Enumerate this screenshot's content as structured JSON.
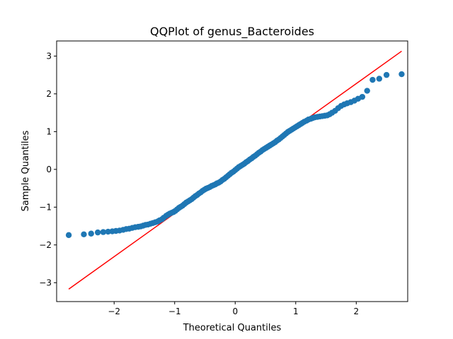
{
  "chart_data": {
    "type": "scatter",
    "title": "QQPlot of genus_Bacteroides",
    "xlabel": "Theoretical Quantiles",
    "ylabel": "Sample Quantiles",
    "xlim": [
      -2.95,
      2.85
    ],
    "ylim": [
      -3.5,
      3.4
    ],
    "xticks": [
      -2,
      -1,
      0,
      1,
      2
    ],
    "yticks": [
      -3,
      -2,
      -1,
      0,
      1,
      2,
      3
    ],
    "grid": false,
    "legend": "none",
    "marker_color": "#1f77b4",
    "line_color": "#ff0000",
    "reference_line": {
      "x": [
        -2.75,
        2.75
      ],
      "y": [
        -3.17,
        3.13
      ]
    },
    "points": [
      [
        -2.75,
        -1.74
      ],
      [
        -2.5,
        -1.72
      ],
      [
        -2.38,
        -1.7
      ],
      [
        -2.27,
        -1.67
      ],
      [
        -2.18,
        -1.66
      ],
      [
        -2.1,
        -1.65
      ],
      [
        -2.03,
        -1.64
      ],
      [
        -1.97,
        -1.63
      ],
      [
        -1.91,
        -1.62
      ],
      [
        -1.85,
        -1.6
      ],
      [
        -1.8,
        -1.58
      ],
      [
        -1.75,
        -1.57
      ],
      [
        -1.7,
        -1.55
      ],
      [
        -1.65,
        -1.53
      ],
      [
        -1.6,
        -1.52
      ],
      [
        -1.56,
        -1.51
      ],
      [
        -1.52,
        -1.49
      ],
      [
        -1.48,
        -1.47
      ],
      [
        -1.44,
        -1.46
      ],
      [
        -1.4,
        -1.44
      ],
      [
        -1.36,
        -1.42
      ],
      [
        -1.32,
        -1.4
      ],
      [
        -1.28,
        -1.38
      ],
      [
        -1.25,
        -1.35
      ],
      [
        -1.21,
        -1.32
      ],
      [
        -1.18,
        -1.28
      ],
      [
        -1.14,
        -1.23
      ],
      [
        -1.11,
        -1.2
      ],
      [
        -1.08,
        -1.17
      ],
      [
        -1.05,
        -1.15
      ],
      [
        -1.02,
        -1.13
      ],
      [
        -0.99,
        -1.1
      ],
      [
        -0.96,
        -1.06
      ],
      [
        -0.93,
        -1.02
      ],
      [
        -0.9,
        -0.99
      ],
      [
        -0.87,
        -0.96
      ],
      [
        -0.84,
        -0.92
      ],
      [
        -0.81,
        -0.88
      ],
      [
        -0.78,
        -0.85
      ],
      [
        -0.75,
        -0.82
      ],
      [
        -0.72,
        -0.79
      ],
      [
        -0.69,
        -0.75
      ],
      [
        -0.66,
        -0.71
      ],
      [
        -0.63,
        -0.68
      ],
      [
        -0.6,
        -0.64
      ],
      [
        -0.57,
        -0.61
      ],
      [
        -0.54,
        -0.57
      ],
      [
        -0.51,
        -0.54
      ],
      [
        -0.48,
        -0.51
      ],
      [
        -0.45,
        -0.49
      ],
      [
        -0.42,
        -0.47
      ],
      [
        -0.39,
        -0.44
      ],
      [
        -0.36,
        -0.42
      ],
      [
        -0.33,
        -0.4
      ],
      [
        -0.3,
        -0.37
      ],
      [
        -0.27,
        -0.35
      ],
      [
        -0.24,
        -0.32
      ],
      [
        -0.21,
        -0.28
      ],
      [
        -0.18,
        -0.25
      ],
      [
        -0.15,
        -0.21
      ],
      [
        -0.12,
        -0.17
      ],
      [
        -0.09,
        -0.13
      ],
      [
        -0.06,
        -0.09
      ],
      [
        -0.03,
        -0.06
      ],
      [
        0.0,
        -0.02
      ],
      [
        0.03,
        0.02
      ],
      [
        0.06,
        0.06
      ],
      [
        0.09,
        0.09
      ],
      [
        0.12,
        0.12
      ],
      [
        0.15,
        0.15
      ],
      [
        0.18,
        0.19
      ],
      [
        0.21,
        0.22
      ],
      [
        0.24,
        0.26
      ],
      [
        0.27,
        0.29
      ],
      [
        0.3,
        0.33
      ],
      [
        0.33,
        0.36
      ],
      [
        0.36,
        0.4
      ],
      [
        0.39,
        0.44
      ],
      [
        0.42,
        0.47
      ],
      [
        0.45,
        0.51
      ],
      [
        0.48,
        0.54
      ],
      [
        0.51,
        0.57
      ],
      [
        0.54,
        0.6
      ],
      [
        0.57,
        0.63
      ],
      [
        0.6,
        0.66
      ],
      [
        0.63,
        0.69
      ],
      [
        0.66,
        0.72
      ],
      [
        0.69,
        0.76
      ],
      [
        0.72,
        0.79
      ],
      [
        0.75,
        0.83
      ],
      [
        0.78,
        0.87
      ],
      [
        0.81,
        0.91
      ],
      [
        0.84,
        0.95
      ],
      [
        0.87,
        0.99
      ],
      [
        0.9,
        1.02
      ],
      [
        0.93,
        1.05
      ],
      [
        0.96,
        1.08
      ],
      [
        0.99,
        1.11
      ],
      [
        1.02,
        1.14
      ],
      [
        1.05,
        1.17
      ],
      [
        1.08,
        1.2
      ],
      [
        1.11,
        1.23
      ],
      [
        1.14,
        1.26
      ],
      [
        1.18,
        1.29
      ],
      [
        1.21,
        1.32
      ],
      [
        1.25,
        1.34
      ],
      [
        1.28,
        1.36
      ],
      [
        1.32,
        1.38
      ],
      [
        1.36,
        1.39
      ],
      [
        1.4,
        1.4
      ],
      [
        1.44,
        1.41
      ],
      [
        1.48,
        1.42
      ],
      [
        1.52,
        1.43
      ],
      [
        1.56,
        1.46
      ],
      [
        1.6,
        1.5
      ],
      [
        1.65,
        1.55
      ],
      [
        1.7,
        1.62
      ],
      [
        1.75,
        1.68
      ],
      [
        1.8,
        1.72
      ],
      [
        1.85,
        1.75
      ],
      [
        1.91,
        1.78
      ],
      [
        1.97,
        1.82
      ],
      [
        2.03,
        1.87
      ],
      [
        2.1,
        1.92
      ],
      [
        2.18,
        2.08
      ],
      [
        2.27,
        2.37
      ],
      [
        2.38,
        2.4
      ],
      [
        2.5,
        2.5
      ],
      [
        2.75,
        2.52
      ]
    ]
  }
}
